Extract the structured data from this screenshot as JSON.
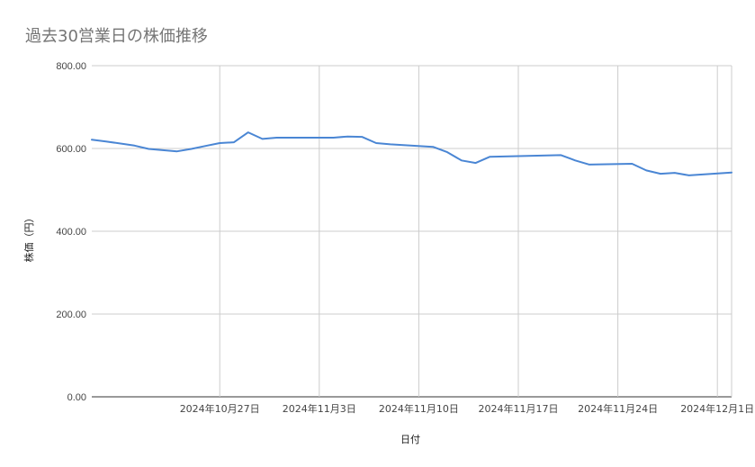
{
  "chart_data": {
    "type": "line",
    "title": "過去30営業日の株価推移",
    "xlabel": "日付",
    "ylabel": "株価（円）",
    "ylim": [
      0,
      800
    ],
    "y_ticks": [
      "0.00",
      "200.00",
      "400.00",
      "600.00",
      "800.00"
    ],
    "y_tick_values": [
      0,
      200,
      400,
      600,
      800
    ],
    "x_range": [
      "2024-10-18",
      "2024-12-02"
    ],
    "x_ticks": [
      {
        "date": "2024-10-27",
        "label": "2024年10月27日"
      },
      {
        "date": "2024-11-03",
        "label": "2024年11月3日"
      },
      {
        "date": "2024-11-10",
        "label": "2024年11月10日"
      },
      {
        "date": "2024-11-17",
        "label": "2024年11月17日"
      },
      {
        "date": "2024-11-24",
        "label": "2024年11月24日"
      },
      {
        "date": "2024-12-01",
        "label": "2024年12月1日"
      }
    ],
    "grid": true,
    "line_color": "#4a86d4",
    "grid_color": "#cccccc",
    "series": [
      {
        "x": [
          "2024-10-18",
          "2024-10-19",
          "2024-10-21",
          "2024-10-22",
          "2024-10-24",
          "2024-10-25",
          "2024-10-26",
          "2024-10-27",
          "2024-10-28",
          "2024-10-29",
          "2024-10-30",
          "2024-10-31",
          "2024-11-01",
          "2024-11-02",
          "2024-11-04",
          "2024-11-05",
          "2024-11-06",
          "2024-11-07",
          "2024-11-08",
          "2024-11-11",
          "2024-11-12",
          "2024-11-13",
          "2024-11-14",
          "2024-11-15",
          "2024-11-20",
          "2024-11-21",
          "2024-11-22",
          "2024-11-25",
          "2024-11-26",
          "2024-11-27",
          "2024-11-28",
          "2024-11-29",
          "2024-12-02"
        ],
        "y": [
          621,
          617,
          607,
          599,
          593,
          599,
          606,
          613,
          615,
          639,
          623,
          626,
          626,
          626,
          626,
          629,
          628,
          613,
          610,
          604,
          591,
          571,
          565,
          580,
          584,
          571,
          561,
          563,
          547,
          539,
          541,
          535,
          542
        ]
      }
    ]
  }
}
